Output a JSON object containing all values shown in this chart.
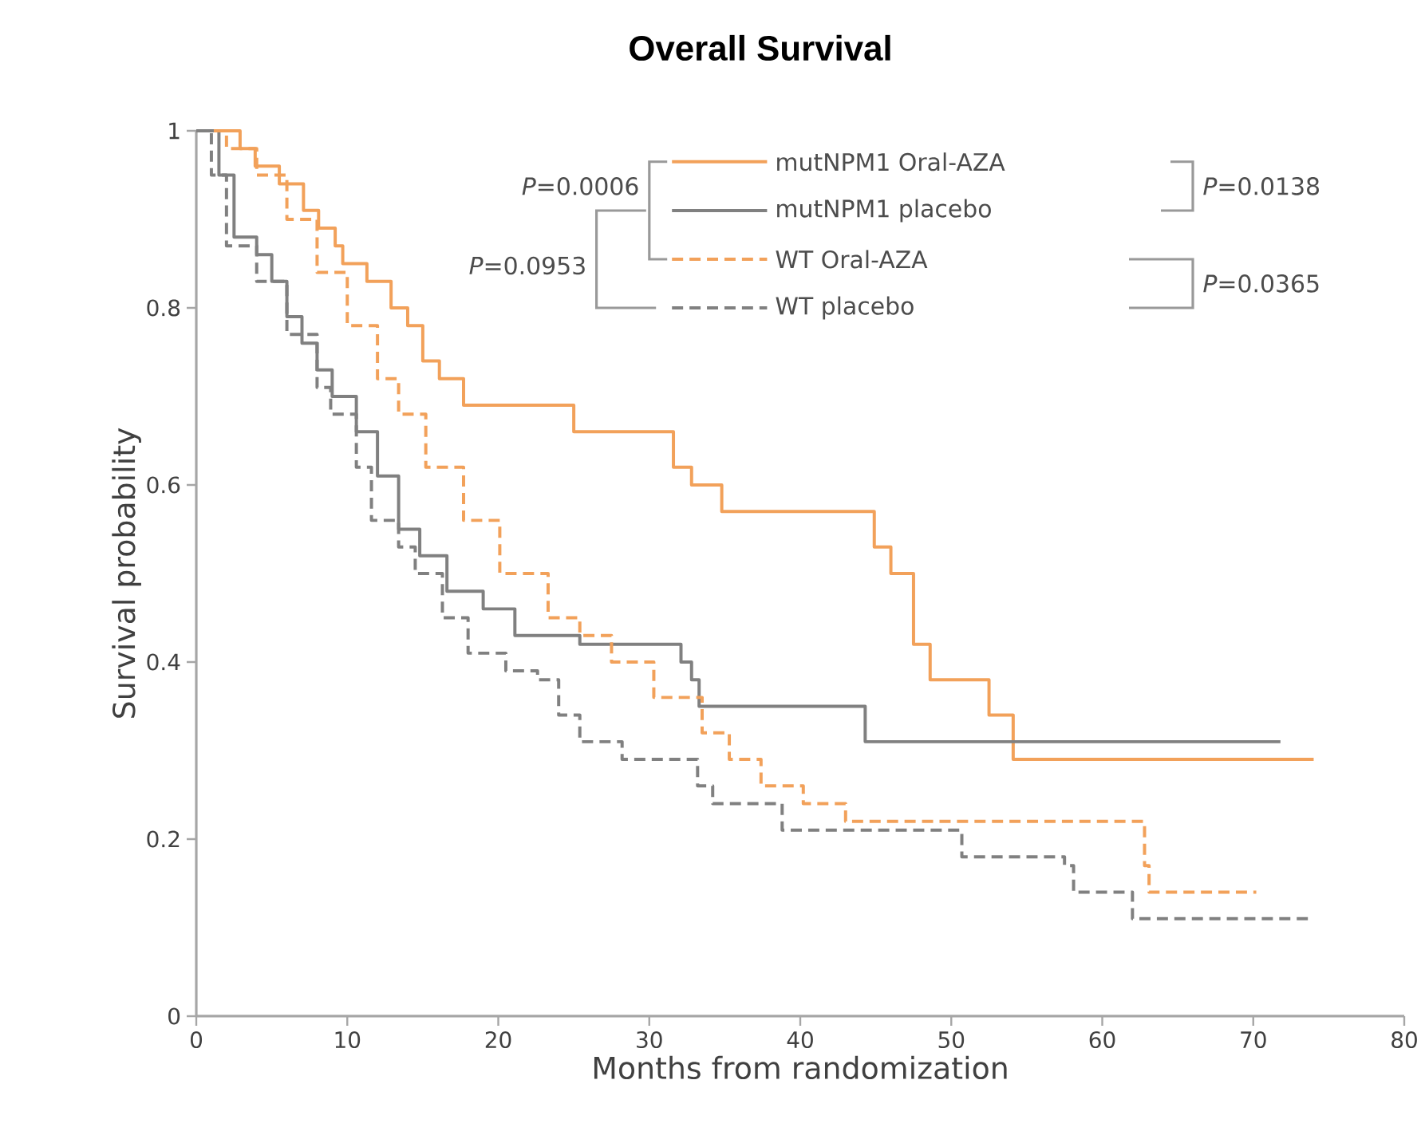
{
  "chart_data": {
    "type": "step",
    "title": "Overall Survival",
    "xlabel": "Months from randomization",
    "ylabel": "Survival probability",
    "xlim": [
      0,
      80
    ],
    "ylim": [
      0,
      1
    ],
    "xticks": [
      0,
      10,
      20,
      30,
      40,
      50,
      60,
      70,
      80
    ],
    "yticks": [
      0,
      0.2,
      0.4,
      0.6,
      0.8,
      1
    ],
    "legend": "top right",
    "annotations": [
      "*P*=0.0006",
      "*P*=0.0953",
      "*P*=0.0138",
      "*P*=0.0365"
    ],
    "series": [
      {
        "name": "mutNPM1 Oral-AZA",
        "color": "#f2a15a",
        "line_style": "solid",
        "x": [
          0,
          2.9,
          3.9,
          5.5,
          7.1,
          8.1,
          9.2,
          9.7,
          11.3,
          12.9,
          14,
          15,
          16.1,
          17.7,
          25,
          31.6,
          32.8,
          34.8,
          44.9,
          46,
          47.5,
          48.6,
          52.5,
          54.1,
          74
        ],
        "values": [
          1,
          0.98,
          0.96,
          0.94,
          0.91,
          0.89,
          0.87,
          0.85,
          0.83,
          0.8,
          0.78,
          0.74,
          0.72,
          0.69,
          0.66,
          0.62,
          0.6,
          0.57,
          0.53,
          0.5,
          0.42,
          0.38,
          0.34,
          0.29,
          0.29
        ]
      },
      {
        "name": "mutNPM1 placebo",
        "color": "#808080",
        "line_style": "solid",
        "x": [
          0,
          1.5,
          2.5,
          4,
          5,
          6,
          7,
          8,
          9,
          10.6,
          12,
          13.4,
          14.8,
          16.6,
          19,
          21.1,
          25.4,
          32.1,
          32.8,
          33.3,
          44.3,
          71.8
        ],
        "values": [
          1,
          0.95,
          0.88,
          0.86,
          0.83,
          0.79,
          0.76,
          0.73,
          0.7,
          0.66,
          0.61,
          0.55,
          0.52,
          0.48,
          0.46,
          0.43,
          0.42,
          0.4,
          0.38,
          0.35,
          0.31,
          0.31
        ]
      },
      {
        "name": "WT Oral-AZA",
        "color": "#f2a15a",
        "line_style": "dashed",
        "x": [
          0,
          2,
          4,
          6,
          8,
          10,
          12,
          13.4,
          15.2,
          17.7,
          20.1,
          23.3,
          25.4,
          27.5,
          30.3,
          33.5,
          35.3,
          37.4,
          40.2,
          43,
          62.8,
          63.1,
          70.2
        ],
        "values": [
          1,
          0.98,
          0.95,
          0.9,
          0.84,
          0.78,
          0.72,
          0.68,
          0.62,
          0.56,
          0.5,
          0.45,
          0.43,
          0.4,
          0.36,
          0.32,
          0.29,
          0.26,
          0.24,
          0.22,
          0.17,
          0.14,
          0.14
        ]
      },
      {
        "name": "WT placebo",
        "color": "#808080",
        "line_style": "dashed",
        "x": [
          0,
          1,
          2,
          4,
          6,
          8,
          8.9,
          10.6,
          11.6,
          13.4,
          14.5,
          16.3,
          18,
          20.5,
          22.6,
          24,
          25.4,
          28.2,
          33.2,
          34.2,
          38.8,
          50.7,
          57.5,
          58.1,
          62,
          74
        ],
        "values": [
          1,
          0.95,
          0.87,
          0.83,
          0.77,
          0.71,
          0.68,
          0.62,
          0.56,
          0.53,
          0.5,
          0.45,
          0.41,
          0.39,
          0.38,
          0.34,
          0.31,
          0.29,
          0.26,
          0.24,
          0.21,
          0.18,
          0.17,
          0.14,
          0.11,
          0.11
        ]
      }
    ]
  }
}
